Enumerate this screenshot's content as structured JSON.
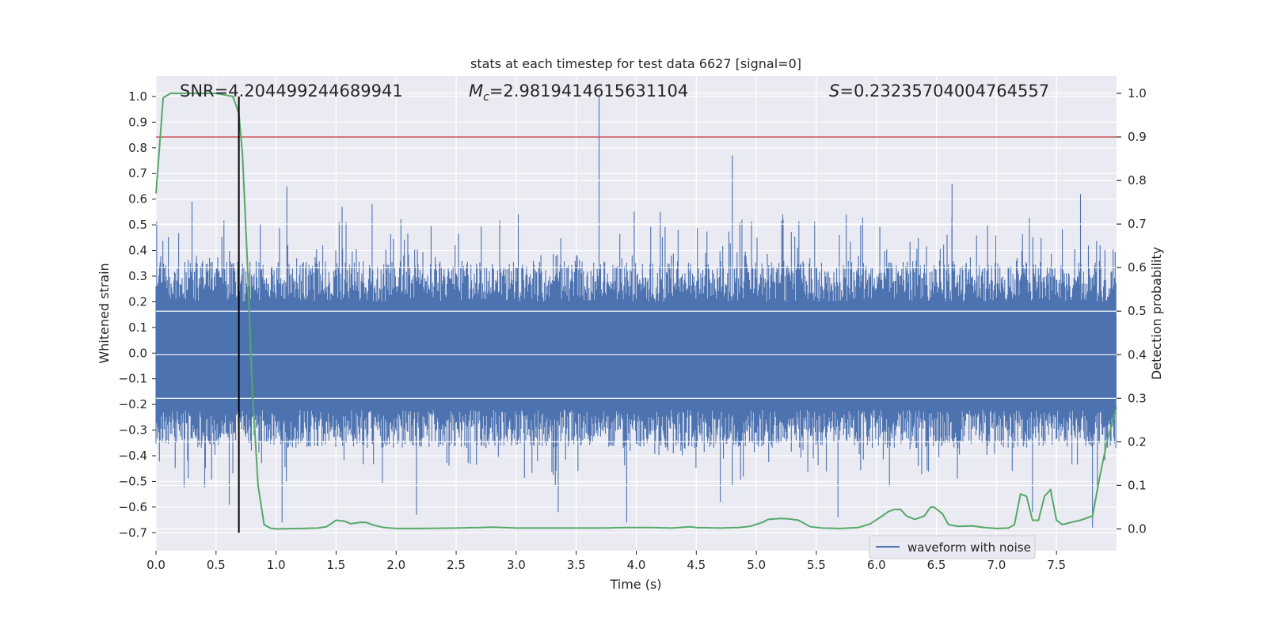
{
  "chart_data": {
    "type": "line",
    "title": "stats at each timestep for test data 6627 [signal=0]",
    "xlabel": "Time (s)",
    "ylabel": "Whitened strain",
    "y2label": "Detection probability",
    "xlim": [
      0.0,
      8.0
    ],
    "ylim": [
      -0.77,
      1.08
    ],
    "y2lim": [
      -0.05,
      1.04
    ],
    "xticks": [
      "0.0",
      "0.5",
      "1.0",
      "1.5",
      "2.0",
      "2.5",
      "3.0",
      "3.5",
      "4.0",
      "4.5",
      "5.0",
      "5.5",
      "6.0",
      "6.5",
      "7.0",
      "7.5"
    ],
    "yticks": [
      "−0.7",
      "−0.6",
      "−0.5",
      "−0.4",
      "−0.3",
      "−0.2",
      "−0.1",
      "0.0",
      "0.1",
      "0.2",
      "0.3",
      "0.4",
      "0.5",
      "0.6",
      "0.7",
      "0.8",
      "0.9",
      "1.0"
    ],
    "y2ticks": [
      "0.0",
      "0.1",
      "0.2",
      "0.3",
      "0.4",
      "0.5",
      "0.6",
      "0.7",
      "0.8",
      "0.9",
      "1.0"
    ],
    "annotations": {
      "snr": "SNR=4.204499244689941",
      "mc_symbol": "M",
      "mc_sub": "c",
      "mc_value": "=2.9819414615631104",
      "s_symbol": "S",
      "s_value": "=0.23235704004764557"
    },
    "legend": {
      "position": "lower-right",
      "entries": [
        "waveform with noise"
      ]
    },
    "threshold_y2": 0.9,
    "marker_x": 0.69,
    "colors": {
      "waveform": "#4c72b0",
      "probability": "#55a868",
      "threshold": "#c44e52",
      "marker": "#000000",
      "background": "#eaeaf2",
      "grid": "#ffffff"
    },
    "waveform": {
      "core_band": [
        -0.18,
        0.15
      ],
      "spikes": [
        {
          "x": 3.69,
          "y": 1.0
        },
        {
          "x": 4.8,
          "y": 0.77
        },
        {
          "x": 1.09,
          "y": 0.65
        },
        {
          "x": 6.63,
          "y": 0.66
        },
        {
          "x": 7.7,
          "y": 0.62
        },
        {
          "x": 0.3,
          "y": 0.59
        },
        {
          "x": 1.55,
          "y": 0.57
        },
        {
          "x": 1.8,
          "y": 0.58
        },
        {
          "x": 4.2,
          "y": 0.55
        },
        {
          "x": 5.22,
          "y": 0.54
        },
        {
          "x": 3.92,
          "y": -0.66
        },
        {
          "x": 1.05,
          "y": -0.66
        },
        {
          "x": 2.17,
          "y": -0.63
        },
        {
          "x": 0.61,
          "y": -0.59
        },
        {
          "x": 4.7,
          "y": -0.58
        },
        {
          "x": 5.68,
          "y": -0.64
        },
        {
          "x": 7.3,
          "y": -0.62
        },
        {
          "x": 7.8,
          "y": -0.68
        },
        {
          "x": 3.35,
          "y": -0.62
        }
      ]
    },
    "detection_probability": {
      "x": [
        0.0,
        0.06,
        0.12,
        0.2,
        0.3,
        0.4,
        0.5,
        0.6,
        0.64,
        0.69,
        0.72,
        0.76,
        0.8,
        0.85,
        0.9,
        0.95,
        1.0,
        1.2,
        1.35,
        1.42,
        1.5,
        1.57,
        1.62,
        1.7,
        1.75,
        1.82,
        1.9,
        2.0,
        2.2,
        2.5,
        2.7,
        2.8,
        2.9,
        3.0,
        3.3,
        3.5,
        3.7,
        3.9,
        4.1,
        4.3,
        4.45,
        4.5,
        4.7,
        4.85,
        4.95,
        5.05,
        5.1,
        5.2,
        5.27,
        5.35,
        5.45,
        5.55,
        5.7,
        5.85,
        5.95,
        6.05,
        6.1,
        6.15,
        6.2,
        6.25,
        6.32,
        6.4,
        6.45,
        6.48,
        6.55,
        6.6,
        6.68,
        6.8,
        6.9,
        7.0,
        7.1,
        7.15,
        7.2,
        7.25,
        7.3,
        7.35,
        7.4,
        7.45,
        7.5,
        7.55,
        7.62,
        7.7,
        7.8,
        7.86,
        7.92,
        8.0
      ],
      "y": [
        0.77,
        0.99,
        1.0,
        1.0,
        1.0,
        1.0,
        1.0,
        0.995,
        0.993,
        0.955,
        0.86,
        0.62,
        0.33,
        0.1,
        0.01,
        0.002,
        0.0,
        0.001,
        0.002,
        0.005,
        0.02,
        0.018,
        0.012,
        0.015,
        0.015,
        0.008,
        0.003,
        0.001,
        0.001,
        0.002,
        0.003,
        0.004,
        0.003,
        0.002,
        0.002,
        0.002,
        0.002,
        0.003,
        0.003,
        0.002,
        0.005,
        0.003,
        0.002,
        0.003,
        0.006,
        0.015,
        0.022,
        0.024,
        0.023,
        0.02,
        0.005,
        0.002,
        0.001,
        0.003,
        0.012,
        0.03,
        0.04,
        0.045,
        0.045,
        0.03,
        0.022,
        0.03,
        0.05,
        0.05,
        0.035,
        0.01,
        0.006,
        0.007,
        0.003,
        0.001,
        0.002,
        0.01,
        0.08,
        0.075,
        0.02,
        0.02,
        0.075,
        0.09,
        0.02,
        0.01,
        0.015,
        0.02,
        0.03,
        0.12,
        0.2,
        0.28
      ]
    }
  }
}
